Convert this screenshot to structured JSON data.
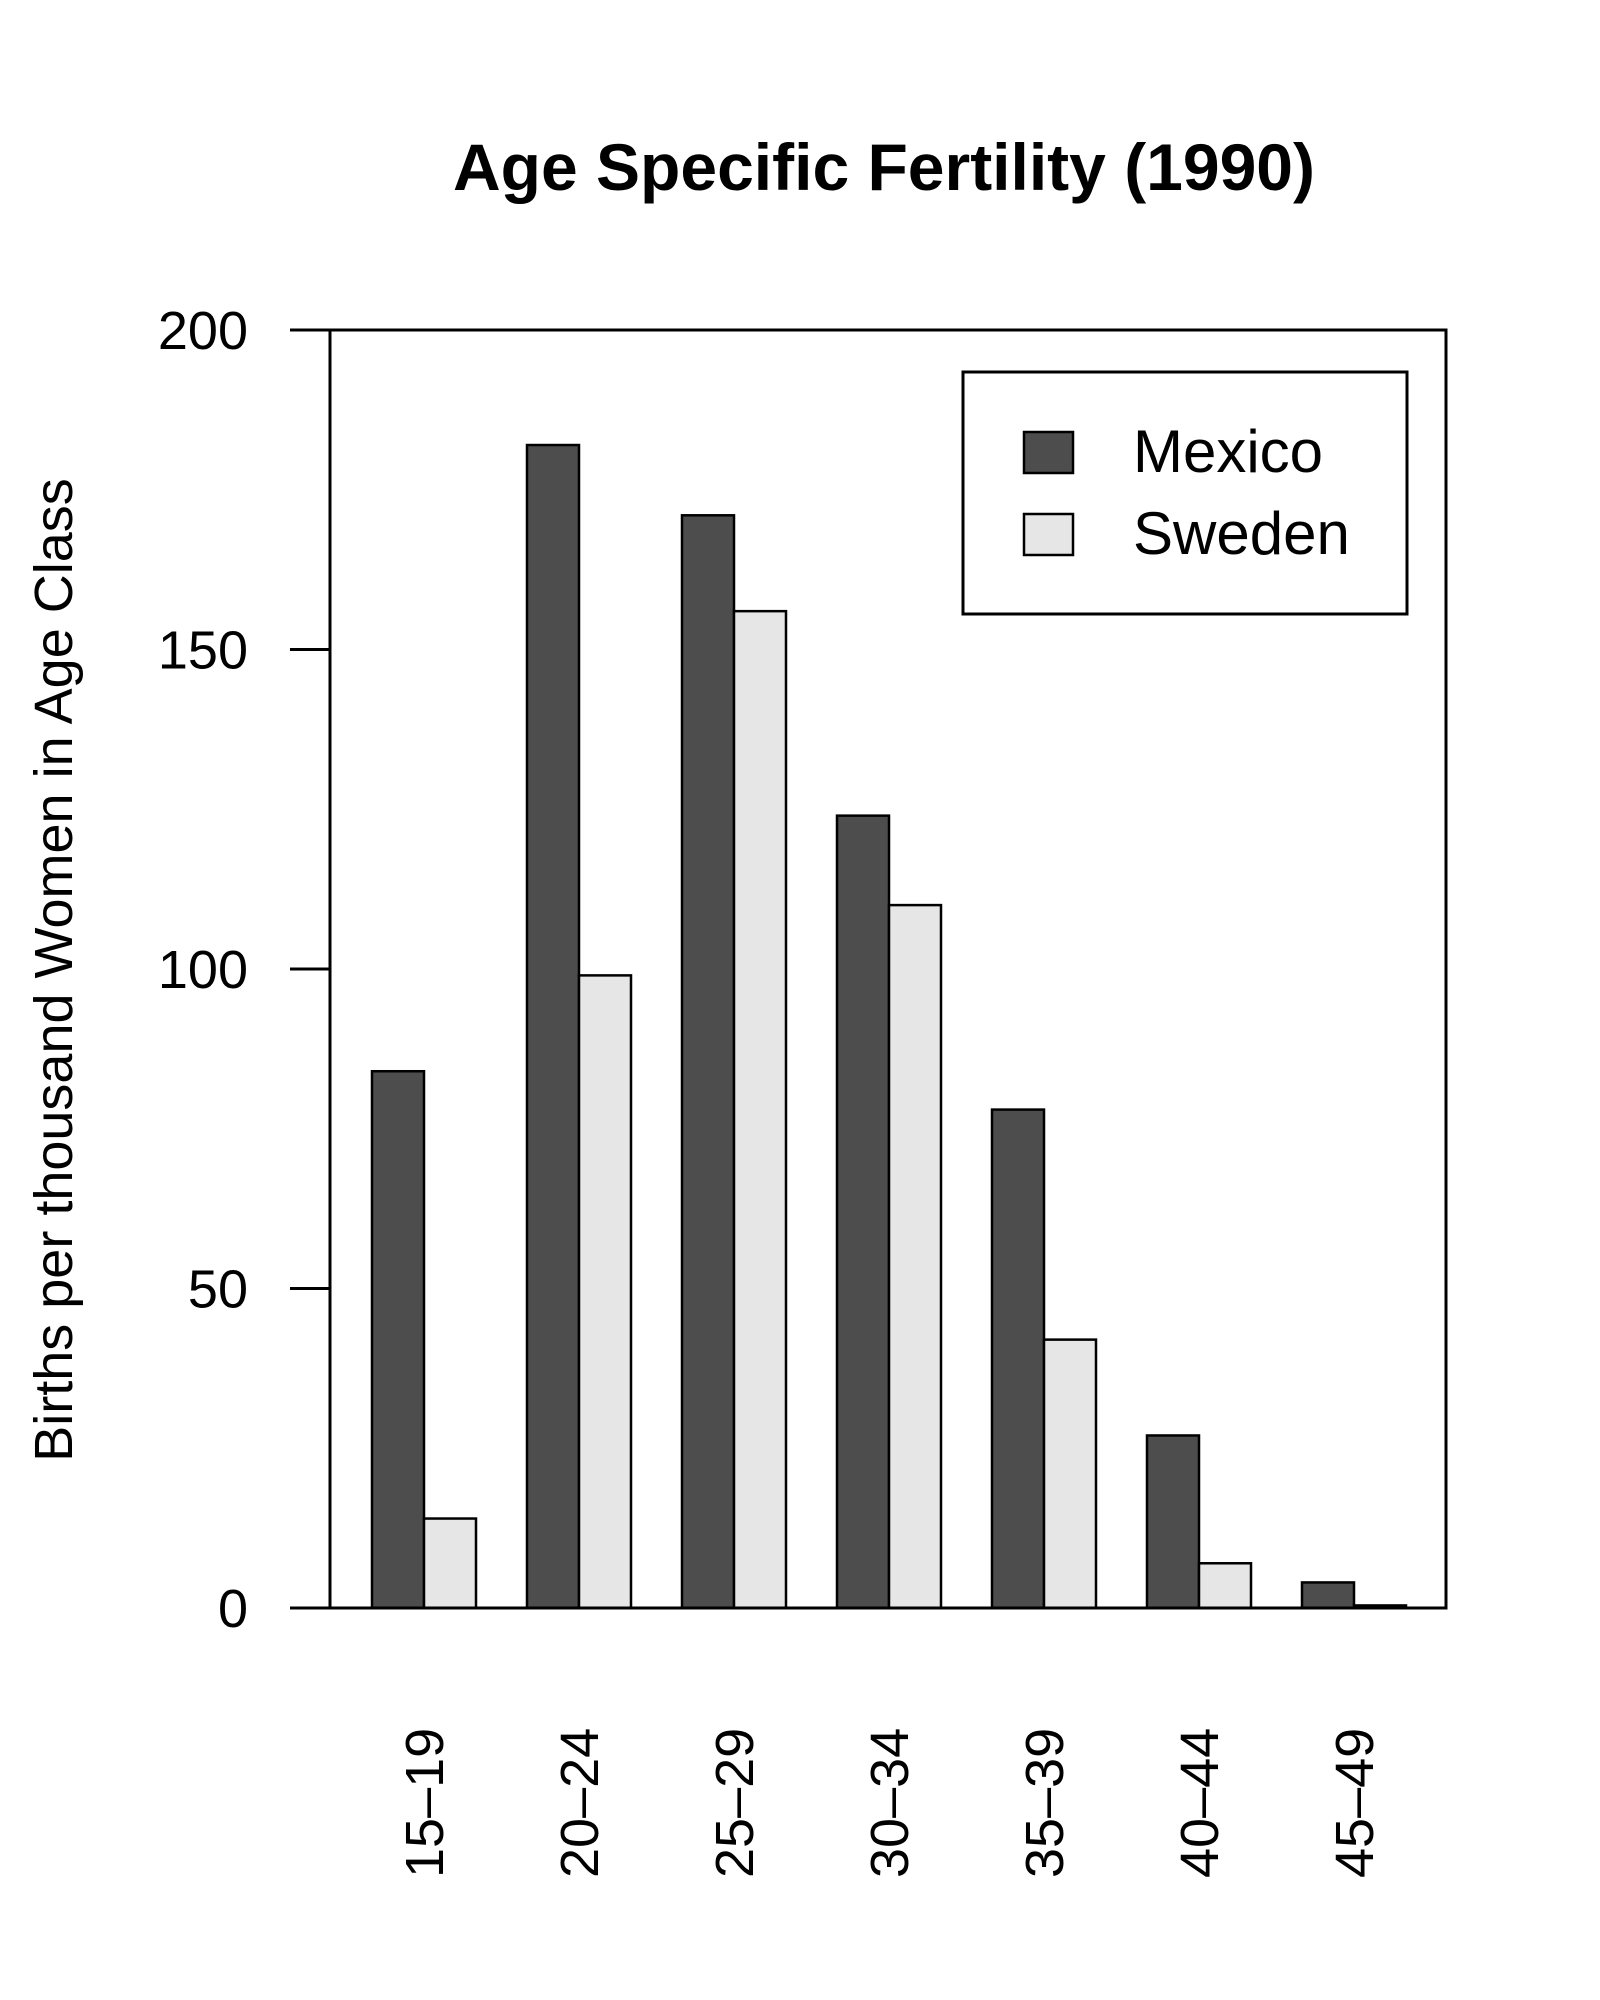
{
  "chart_data": {
    "type": "bar",
    "title": "Age Specific Fertility (1990)",
    "xlabel": "",
    "ylabel": "Births per thousand Women in Age Class",
    "categories": [
      "15–19",
      "20–24",
      "25–29",
      "30–34",
      "35–39",
      "40–44",
      "45–49"
    ],
    "series": [
      {
        "name": "Mexico",
        "color": "#4d4d4d",
        "values": [
          84,
          182,
          171,
          124,
          78,
          27,
          4
        ]
      },
      {
        "name": "Sweden",
        "color": "#e6e6e6",
        "values": [
          14,
          99,
          156,
          110,
          42,
          7,
          0.4
        ]
      }
    ],
    "ylim": [
      0,
      200
    ],
    "yticks": [
      "0",
      "50",
      "100",
      "150",
      "200"
    ],
    "grid": false,
    "legend_position": "top-right"
  }
}
